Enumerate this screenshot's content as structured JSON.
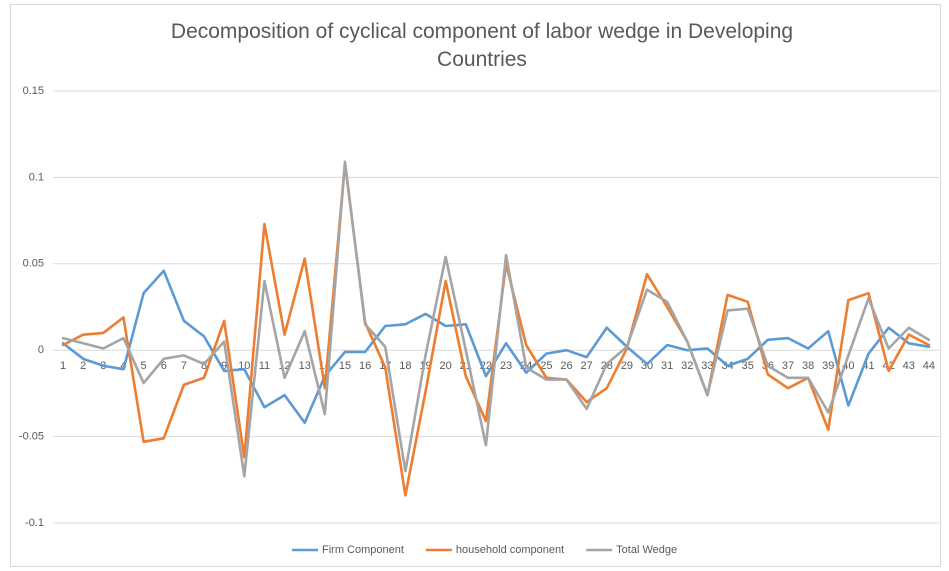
{
  "chart_data": {
    "type": "line",
    "title": "Decomposition of cyclical component of labor wedge in Developing Countries",
    "categories": [
      "1",
      "2",
      "3",
      "4",
      "5",
      "6",
      "7",
      "8",
      "9",
      "10",
      "11",
      "12",
      "13",
      "14",
      "15",
      "16",
      "17",
      "18",
      "19",
      "20",
      "21",
      "22",
      "23",
      "24",
      "25",
      "26",
      "27",
      "28",
      "29",
      "30",
      "31",
      "32",
      "33",
      "34",
      "35",
      "36",
      "37",
      "38",
      "39",
      "40",
      "41",
      "42",
      "43",
      "44"
    ],
    "series": [
      {
        "name": "Firm Component",
        "color": "#5b9bd5",
        "values": [
          0.004,
          -0.005,
          -0.009,
          -0.011,
          0.033,
          0.046,
          0.017,
          0.008,
          -0.012,
          -0.011,
          -0.033,
          -0.026,
          -0.042,
          -0.015,
          -0.001,
          -0.001,
          0.014,
          0.015,
          0.021,
          0.014,
          0.015,
          -0.015,
          0.004,
          -0.013,
          -0.002,
          0,
          -0.004,
          0.013,
          0.002,
          -0.008,
          0.003,
          0,
          0.001,
          -0.009,
          -0.005,
          0.006,
          0.007,
          0.001,
          0.011,
          -0.032,
          -0.002,
          0.013,
          0.004,
          0.002
        ]
      },
      {
        "name": "household component",
        "color": "#ed7d31",
        "values": [
          0.003,
          0.009,
          0.01,
          0.019,
          -0.053,
          -0.051,
          -0.02,
          -0.016,
          0.017,
          -0.062,
          0.073,
          0.009,
          0.053,
          -0.022,
          0.108,
          0.016,
          -0.01,
          -0.084,
          -0.024,
          0.04,
          -0.015,
          -0.041,
          0.05,
          0.003,
          -0.016,
          -0.017,
          -0.03,
          -0.022,
          0.001,
          0.044,
          0.025,
          0.005,
          -0.026,
          0.032,
          0.028,
          -0.014,
          -0.022,
          -0.016,
          -0.046,
          0.029,
          0.033,
          -0.012,
          0.009,
          0.003
        ]
      },
      {
        "name": "Total Wedge",
        "color": "#a5a5a5",
        "values": [
          0.007,
          0.004,
          0.001,
          0.007,
          -0.019,
          -0.005,
          -0.003,
          -0.008,
          0.005,
          -0.073,
          0.04,
          -0.016,
          0.011,
          -0.037,
          0.109,
          0.015,
          0.002,
          -0.07,
          -0.003,
          0.054,
          0.0,
          -0.055,
          0.055,
          -0.01,
          -0.017,
          -0.017,
          -0.034,
          -0.008,
          0.002,
          0.035,
          0.028,
          0.005,
          -0.026,
          0.023,
          0.024,
          -0.009,
          -0.016,
          -0.016,
          -0.036,
          -0.003,
          0.03,
          0.001,
          0.013,
          0.006
        ]
      }
    ],
    "ylim": [
      -0.1,
      0.15
    ],
    "yticks": [
      -0.1,
      -0.05,
      0,
      0.05,
      0.1,
      0.15
    ],
    "grid": true,
    "legend": "bottom"
  }
}
